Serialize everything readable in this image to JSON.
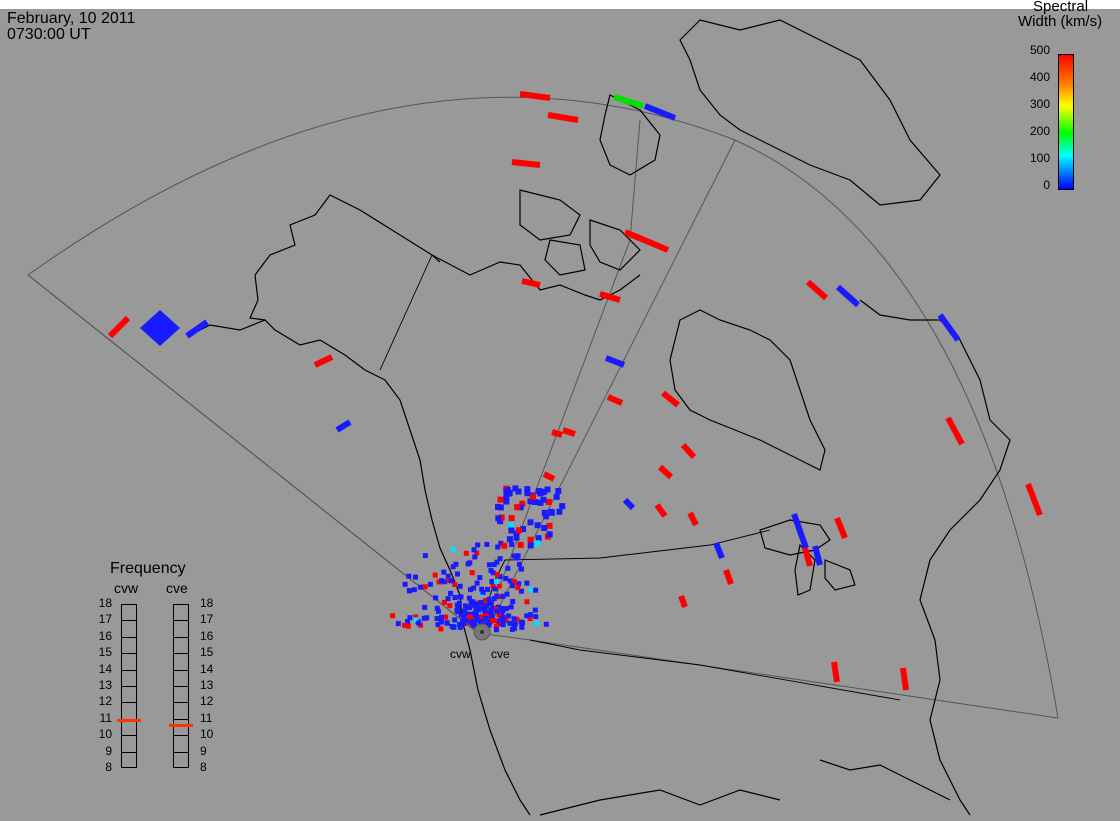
{
  "header": {
    "date": "February, 10 2011",
    "time": "0730:00 UT"
  },
  "colorbar": {
    "title_line1": "Spectral",
    "title_line2": "Width (km/s)",
    "ticks": [
      "500",
      "400",
      "300",
      "200",
      "100",
      "0"
    ],
    "colors": [
      "#ff0000",
      "#ff8000",
      "#ffff00",
      "#00ff00",
      "#00ffff",
      "#0000ff"
    ]
  },
  "frequency": {
    "title": "Frequency",
    "radar_left": "cvw",
    "radar_right": "cve",
    "scale": [
      "18",
      "17",
      "16",
      "15",
      "14",
      "13",
      "12",
      "11",
      "10",
      "9",
      "8"
    ],
    "cvw_value_mhz": 10.9,
    "cve_value_mhz": 10.6,
    "marker_color": "#ff3300"
  },
  "sites": {
    "left": "cvw",
    "right": "cve"
  },
  "map": {
    "background": "#999999",
    "coast_color": "#000000",
    "fov_color": "#555555"
  }
}
